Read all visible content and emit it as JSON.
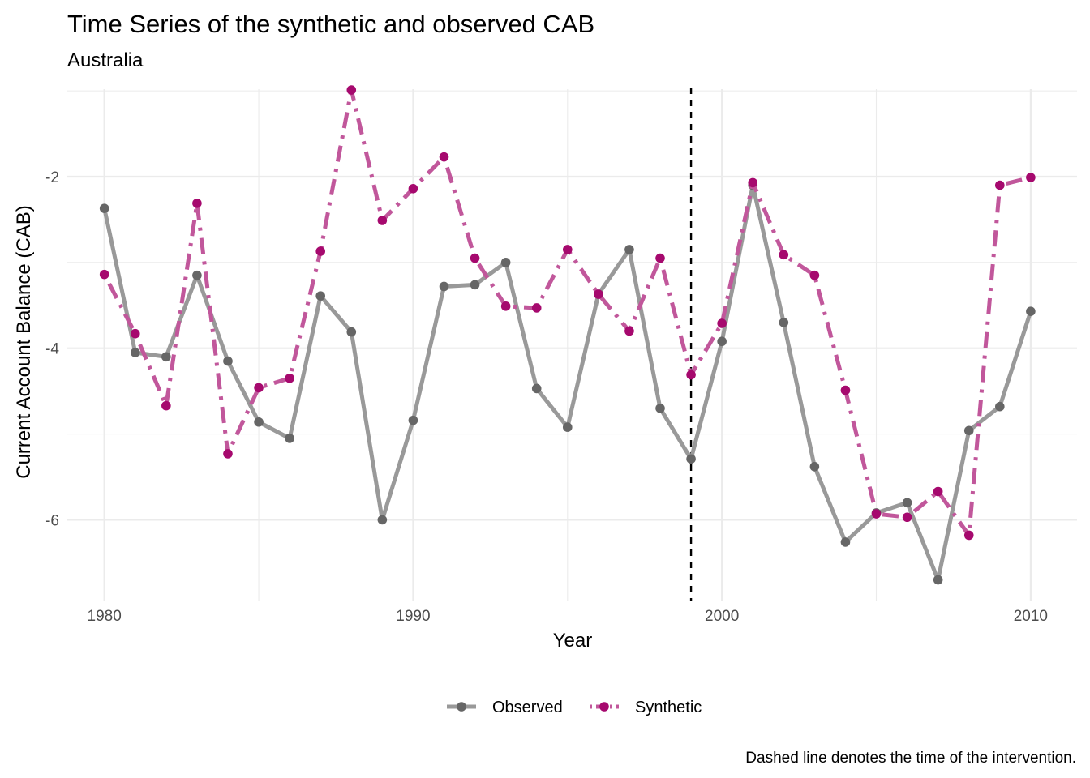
{
  "chart_data": {
    "type": "line",
    "title": "Time Series of the synthetic and observed CAB",
    "subtitle": "Australia",
    "xlabel": "Year",
    "ylabel": "Current Account Balance (CAB)",
    "caption": "Dashed line denotes the time of the intervention.",
    "x": [
      1980,
      1981,
      1982,
      1983,
      1984,
      1985,
      1986,
      1987,
      1988,
      1989,
      1990,
      1991,
      1992,
      1993,
      1994,
      1995,
      1996,
      1997,
      1998,
      1999,
      2000,
      2001,
      2002,
      2003,
      2004,
      2005,
      2006,
      2007,
      2008,
      2009,
      2010
    ],
    "xlim": [
      1978.8,
      2011.5
    ],
    "ylim": [
      -6.95,
      -0.98
    ],
    "xticks": [
      1980,
      1990,
      2000,
      2010
    ],
    "xtick_labels": [
      "1980",
      "1990",
      "2000",
      "2010"
    ],
    "yticks": [
      -2,
      -4,
      -6
    ],
    "ytick_labels": [
      "-2",
      "-4",
      "-6"
    ],
    "intervention_x": 1999,
    "legend_position": "bottom",
    "series": [
      {
        "name": "Observed",
        "color": "#999999",
        "point_color": "#666666",
        "linestyle": "solid",
        "values": [
          -2.37,
          -4.05,
          -4.1,
          -3.15,
          -4.15,
          -4.86,
          -5.05,
          -3.39,
          -3.81,
          -6.0,
          -4.84,
          -3.28,
          -3.26,
          -3.0,
          -4.47,
          -4.92,
          -3.37,
          -2.85,
          -4.7,
          -5.29,
          -3.92,
          -2.1,
          -3.7,
          -5.38,
          -6.26,
          -5.92,
          -5.8,
          -6.7,
          -4.96,
          -4.68,
          -3.57
        ]
      },
      {
        "name": "Synthetic",
        "color": "#c1579b",
        "point_color": "#a6096e",
        "linestyle": "dotdash",
        "values": [
          -3.14,
          -3.83,
          -4.67,
          -2.31,
          -5.23,
          -4.46,
          -4.35,
          -2.87,
          -0.99,
          -2.51,
          -2.14,
          -1.77,
          -2.95,
          -3.51,
          -3.53,
          -2.85,
          -3.37,
          -3.8,
          -2.95,
          -4.31,
          -3.71,
          -2.07,
          -2.91,
          -3.15,
          -4.49,
          -5.93,
          -5.97,
          -5.67,
          -6.18,
          -2.1,
          -2.01
        ]
      }
    ]
  }
}
